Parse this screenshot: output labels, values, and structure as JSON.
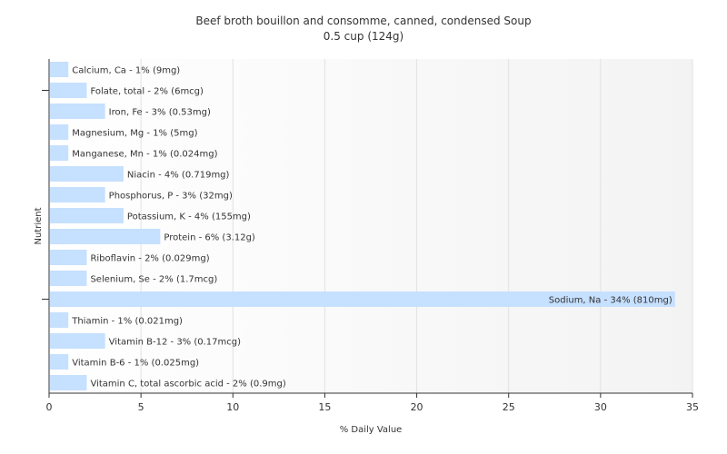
{
  "chart_data": {
    "type": "bar",
    "orientation": "horizontal",
    "title": "Beef broth bouillon and consomme, canned, condensed Soup",
    "subtitle": "0.5 cup (124g)",
    "xlabel": "% Daily Value",
    "ylabel": "Nutrient",
    "xlim": [
      0,
      35
    ],
    "xticks": [
      "0",
      "5",
      "10",
      "15",
      "20",
      "25",
      "30",
      "35"
    ],
    "grid": "vertical",
    "bar_color": "#c6e0ff",
    "categories": [
      "Calcium, Ca",
      "Folate, total",
      "Iron, Fe",
      "Magnesium, Mg",
      "Manganese, Mn",
      "Niacin",
      "Phosphorus, P",
      "Potassium, K",
      "Protein",
      "Riboflavin",
      "Selenium, Se",
      "Sodium, Na",
      "Thiamin",
      "Vitamin B-12",
      "Vitamin B-6",
      "Vitamin C, total ascorbic acid"
    ],
    "values": [
      1,
      2,
      3,
      1,
      1,
      4,
      3,
      4,
      6,
      2,
      2,
      34,
      1,
      3,
      1,
      2
    ],
    "labels": [
      "Calcium, Ca - 1% (9mg)",
      "Folate, total - 2% (6mcg)",
      "Iron, Fe - 3% (0.53mg)",
      "Magnesium, Mg - 1% (5mg)",
      "Manganese, Mn - 1% (0.024mg)",
      "Niacin - 4% (0.719mg)",
      "Phosphorus, P - 3% (32mg)",
      "Potassium, K - 4% (155mg)",
      "Protein - 6% (3.12g)",
      "Riboflavin - 2% (0.029mg)",
      "Selenium, Se - 2% (1.7mcg)",
      "Sodium, Na - 34% (810mg)",
      "Thiamin - 1% (0.021mg)",
      "Vitamin B-12 - 3% (0.17mcg)",
      "Vitamin B-6 - 1% (0.025mg)",
      "Vitamin C, total ascorbic acid - 2% (0.9mg)"
    ]
  }
}
